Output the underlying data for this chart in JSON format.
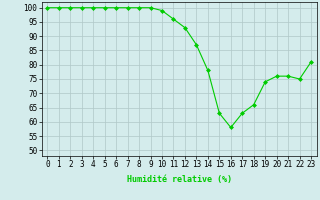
{
  "x": [
    0,
    1,
    2,
    3,
    4,
    5,
    6,
    7,
    8,
    9,
    10,
    11,
    12,
    13,
    14,
    15,
    16,
    17,
    18,
    19,
    20,
    21,
    22,
    23
  ],
  "y": [
    100,
    100,
    100,
    100,
    100,
    100,
    100,
    100,
    100,
    100,
    99,
    96,
    93,
    87,
    78,
    63,
    58,
    63,
    66,
    74,
    76,
    76,
    75,
    81
  ],
  "line_color": "#00cc00",
  "marker_color": "#00cc00",
  "bg_color": "#d4ecec",
  "grid_color": "#b0c8c8",
  "xlabel": "Humidité relative (%)",
  "yticks": [
    50,
    55,
    60,
    65,
    70,
    75,
    80,
    85,
    90,
    95,
    100
  ],
  "xlim": [
    -0.5,
    23.5
  ],
  "ylim": [
    48,
    102
  ],
  "xlabel_fontsize": 6.0,
  "tick_fontsize": 5.5,
  "figwidth": 3.2,
  "figheight": 2.0,
  "dpi": 100
}
